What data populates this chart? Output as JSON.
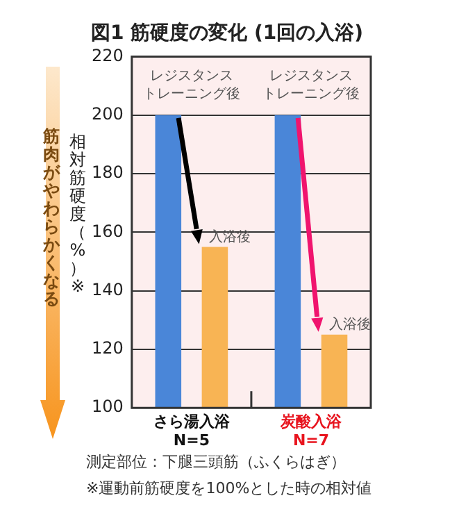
{
  "chart_data": {
    "type": "bar",
    "title": "図1 筋硬度の変化 (1回の入浴)",
    "ylabel": "相対筋硬度（%）※",
    "categories": [
      "さら湯入浴\nN=5",
      "炭酸入浴\nN=7"
    ],
    "series": [
      {
        "color": "#4a86d8",
        "values": [
          200,
          200
        ]
      },
      {
        "color": "#f8b454",
        "values": [
          155,
          125
        ]
      }
    ],
    "ylim": [
      100,
      220
    ],
    "yticks": [
      100,
      120,
      140,
      160,
      180,
      200,
      220
    ],
    "grid": "y",
    "legend": false,
    "annotations": [
      "筋肉がやわらかくなる",
      "レジスタンストレーニング後",
      "レジスタンストレーニング後",
      "入浴後",
      "入浴後",
      "測定部位：下腿三頭筋（ふくらはぎ）",
      "※運動前筋硬度を100%とした時の相対値"
    ]
  }
}
